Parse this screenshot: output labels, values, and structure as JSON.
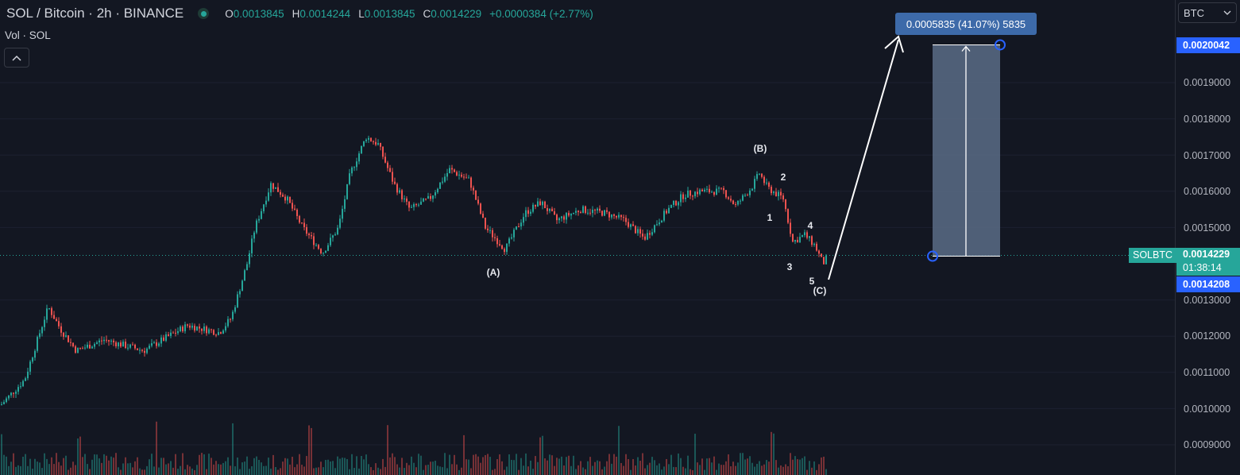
{
  "header": {
    "symbol_title": "SOL / Bitcoin · 2h · BINANCE",
    "ohlc": {
      "o_key": "O",
      "o_val": "0.0013845",
      "h_key": "H",
      "h_val": "0.0014244",
      "l_key": "L",
      "l_val": "0.0013845",
      "c_key": "C",
      "c_val": "0.0014229",
      "change": "+0.0000384 (+2.77%)"
    }
  },
  "volume_label": "Vol · SOL",
  "collapse_icon": "chevron-up-icon",
  "price_axis": {
    "currency": "BTC",
    "ticks": [
      "0.0019000",
      "0.0018000",
      "0.0017000",
      "0.0016000",
      "0.0015000",
      "0.0013000",
      "0.0012000",
      "0.0011000",
      "0.0010000",
      "0.0009000"
    ],
    "target_price": "0.0020042",
    "current_price": "0.0014229",
    "countdown": "01:38:14",
    "low_price": "0.0014208"
  },
  "symbol_tag": "SOLBTC",
  "measure_label": "0.0005835 (41.07%) 5835",
  "wave_labels": [
    "(A)",
    "(B)",
    "1",
    "2",
    "3",
    "4",
    "5",
    "(C)"
  ],
  "colors": {
    "background": "#131722",
    "up": "#26a69a",
    "down": "#ef5350",
    "measure_box": "#5b6c86",
    "measure_label": "#3d6aa9",
    "target_tag": "#2962ff"
  },
  "chart_data": {
    "type": "candlestick",
    "interval": "2h",
    "ylim": [
      0.00085,
      0.00212
    ],
    "key_points": [
      {
        "label": "start",
        "price": 0.00101
      },
      {
        "label": "peak",
        "price": 0.00178
      },
      {
        "label": "(A)",
        "price": 0.00142
      },
      {
        "label": "(B)",
        "price": 0.00166
      },
      {
        "label": "(C)",
        "price": 0.00138
      },
      {
        "label": "last close",
        "price": 0.0014229
      }
    ],
    "projection": {
      "from_price": 0.0014208,
      "to_price": 0.0020042,
      "change": 0.0005835,
      "change_pct": 41.07,
      "ticks": 5835
    }
  }
}
